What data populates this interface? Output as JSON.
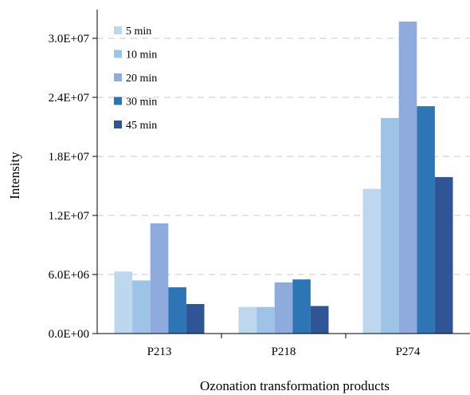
{
  "chart_data": {
    "type": "bar",
    "categories": [
      "P213",
      "P218",
      "P274"
    ],
    "series": [
      {
        "name": "5 min",
        "color": "#bdd7ee",
        "values": [
          6300000,
          2700000,
          14700000
        ]
      },
      {
        "name": "10 min",
        "color": "#9dc3e6",
        "values": [
          5400000,
          2700000,
          21900000
        ]
      },
      {
        "name": "20 min",
        "color": "#8faadc",
        "values": [
          11200000,
          5200000,
          31700000
        ]
      },
      {
        "name": "30 min",
        "color": "#2e75b6",
        "values": [
          4700000,
          5500000,
          23100000
        ]
      },
      {
        "name": "45 min",
        "color": "#2f5597",
        "values": [
          3000000,
          2800000,
          15900000
        ]
      }
    ],
    "xlabel": "Ozonation transformation products",
    "ylabel": "Intensity",
    "ylim": [
      0,
      30000000
    ],
    "yticks": [
      0,
      6000000,
      12000000,
      18000000,
      24000000,
      30000000
    ],
    "ytick_labels": [
      "0.0E+00",
      "6.0E+06",
      "1.2E+07",
      "1.8E+07",
      "2.4E+07",
      "3.0E+07"
    ],
    "grid": "horizontal-dashed",
    "legend_position": "top-left"
  }
}
